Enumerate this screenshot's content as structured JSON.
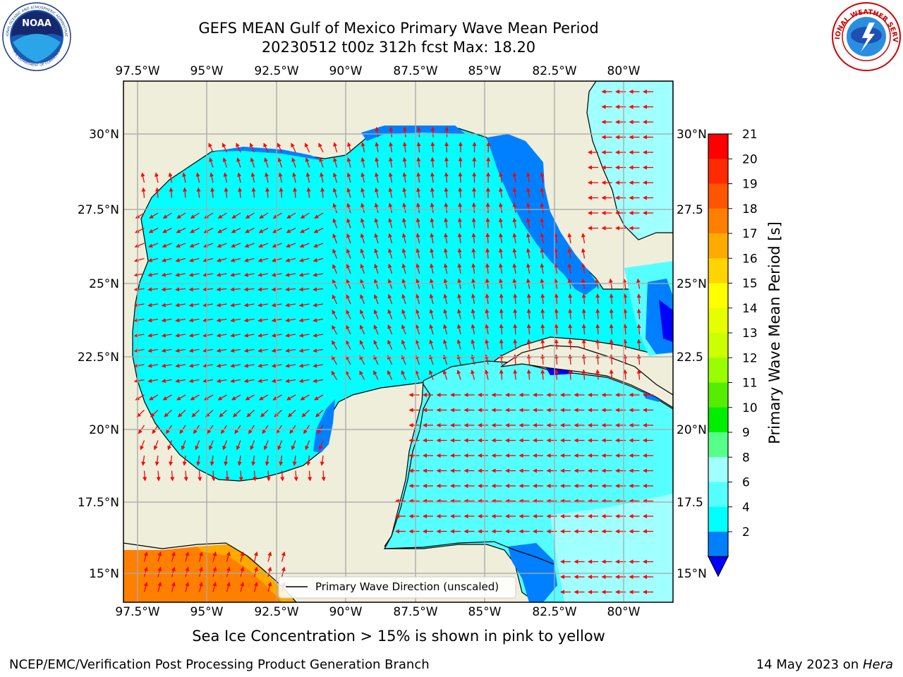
{
  "title_line1": "GEFS MEAN Gulf of Mexico Primary Wave Mean Period",
  "title_line2": "20230512 t00z 312h fcst   Max: 18.20",
  "top_lon_labels": [
    "97.5°W",
    "95°W",
    "92.5°W",
    "90°W",
    "87.5°W",
    "85°W",
    "82.5°W",
    "80°W"
  ],
  "bottom_lon_labels": [
    "97.5°W",
    "95°W",
    "92.5°W",
    "90°W",
    "87.5°W",
    "85°W",
    "82.5°W",
    "80°W"
  ],
  "left_lat_labels": [
    "30°N",
    "27.5°N",
    "25°N",
    "22.5°N",
    "20°N",
    "17.5°N",
    "15°N"
  ],
  "right_lat_labels": [
    "30°N",
    "27.5",
    "25°N",
    "22.5",
    "20°N",
    "17.5",
    "15°N"
  ],
  "legend_label": "Primary Wave Direction (unscaled)",
  "colorbar_label": "Primary Wave Mean Period [s]",
  "colorbar_ticks": [
    "21",
    "20",
    "19",
    "18",
    "17",
    "16",
    "15",
    "14",
    "13",
    "12",
    "11",
    "10",
    "9",
    "8",
    "6",
    "4",
    "2"
  ],
  "colorbar_colors": [
    "#ff0000",
    "#ff2a00",
    "#ff5500",
    "#ff8000",
    "#ffaa00",
    "#ffd400",
    "#ffff00",
    "#e6ff00",
    "#ccff00",
    "#99ff00",
    "#55ee00",
    "#00ee00",
    "#55ff88",
    "#a0ffff",
    "#55ffff",
    "#00ffff",
    "#0080ff"
  ],
  "colorbar_extend_color": "#0000ff",
  "caption": "Sea Ice Concentration > 15% is shown in pink to yellow",
  "footer_left": "NCEP/EMC/Verification Post Processing Product Generation Branch",
  "footer_right_date": "14 May 2023 on ",
  "footer_right_host": "Hera",
  "noaa_logo_text": "NOAA",
  "noaa_ring_text": "NATIONAL OCEANIC AND ATMOSPHERIC ADMINISTRATION",
  "noaa_ring_text_bottom": "U.S. DEPARTMENT OF COMMERCE",
  "nws_ring_text": "NATIONAL WEATHER SERVICE",
  "colors": {
    "land": "#efeedb",
    "sea_main": "#00ffff",
    "sea_light": "#55ffff",
    "sea_pale": "#a0ffff",
    "sea_blue": "#0080ff",
    "sea_dark": "#0000ff",
    "orange": "#ff8000",
    "arrow": "#ff0000"
  }
}
